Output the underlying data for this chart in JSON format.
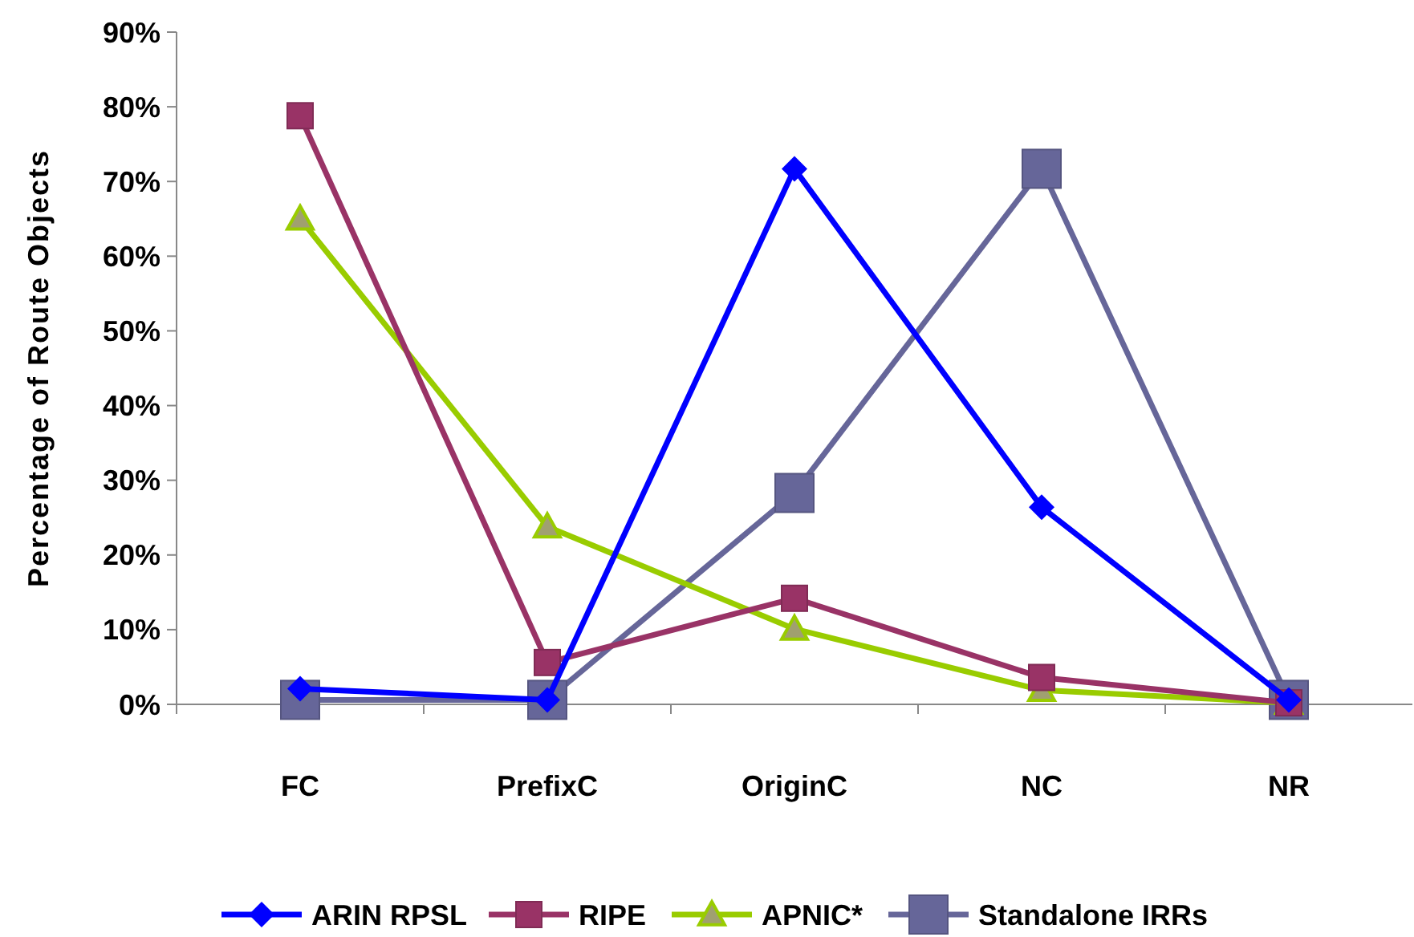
{
  "chart_data": {
    "type": "line",
    "ylabel": "Percentage of Route Objects",
    "categories": [
      "FC",
      "PrefixC",
      "OriginC",
      "NC",
      "NR"
    ],
    "ylim": [
      0,
      90
    ],
    "yticks": [
      {
        "value": 0,
        "label": "0%"
      },
      {
        "value": 10,
        "label": "10%"
      },
      {
        "value": 20,
        "label": "20%"
      },
      {
        "value": 30,
        "label": "30%"
      },
      {
        "value": 40,
        "label": "40%"
      },
      {
        "value": 50,
        "label": "50%"
      },
      {
        "value": 60,
        "label": "60%"
      },
      {
        "value": 70,
        "label": "70%"
      },
      {
        "value": 80,
        "label": "80%"
      },
      {
        "value": 90,
        "label": "90%"
      }
    ],
    "grid": false,
    "legend": "bottom",
    "series": [
      {
        "name": "ARIN RPSL",
        "color": "#0000ff",
        "marker": "diamond",
        "values": [
          2.1,
          0.6,
          71.7,
          26.4,
          0.6
        ]
      },
      {
        "name": "RIPE",
        "color": "#993366",
        "marker": "square",
        "values": [
          78.8,
          5.6,
          14.2,
          3.6,
          0.2
        ]
      },
      {
        "name": "APNIC*",
        "color": "#99cc00",
        "marker": "triangle",
        "values": [
          65,
          23.8,
          10.1,
          1.9,
          0.2
        ]
      },
      {
        "name": "Standalone IRRs",
        "color": "#666699",
        "marker": "square",
        "values": [
          0.6,
          0.6,
          28.3,
          71.7,
          0.6
        ]
      }
    ]
  }
}
